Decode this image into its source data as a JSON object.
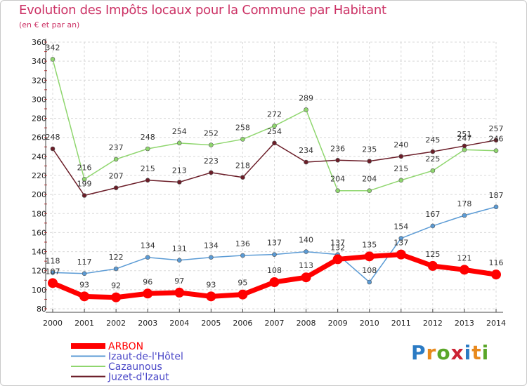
{
  "title": "Evolution des Impôts locaux pour la Commune par Habitant",
  "subtitle": "(en € et par an)",
  "logo": {
    "text": "Proxiti",
    "colors": [
      "#2b7bc4",
      "#e8891c",
      "#5aa628",
      "#cc2233",
      "#2b7bc4",
      "#e8891c",
      "#5aa628"
    ]
  },
  "chart_data": {
    "type": "line",
    "title": "Evolution des Impôts locaux pour la Commune par Habitant",
    "subtitle": "(en € et par an)",
    "x": [
      "2000",
      "2001",
      "2002",
      "2003",
      "2004",
      "2005",
      "2006",
      "2007",
      "2008",
      "2009",
      "2010",
      "2011",
      "2012",
      "2013",
      "2014"
    ],
    "ylim": [
      80,
      360
    ],
    "yticks": [
      80,
      100,
      120,
      140,
      160,
      180,
      200,
      220,
      240,
      260,
      280,
      300,
      320,
      340,
      360
    ],
    "grid": true,
    "legend": "bottom-left",
    "series": [
      {
        "name": "Izaut-de-l'Hôtel",
        "color": "#5b9bd5",
        "values": [
          118,
          117,
          122,
          134,
          131,
          134,
          136,
          137,
          140,
          137,
          108,
          154,
          167,
          178,
          187
        ]
      },
      {
        "name": "Cazaunous",
        "color": "#8fd66e",
        "values": [
          342,
          216,
          237,
          248,
          254,
          252,
          258,
          272,
          289,
          204,
          204,
          215,
          225,
          247,
          246
        ]
      },
      {
        "name": "Juzet-d'Izaut",
        "color": "#6b1d28",
        "values": [
          248,
          199,
          207,
          215,
          213,
          223,
          218,
          254,
          234,
          236,
          235,
          240,
          245,
          251,
          257
        ]
      },
      {
        "name": "ARBON",
        "color": "#ff0000",
        "values": [
          107,
          93,
          92,
          96,
          97,
          93,
          95,
          108,
          113,
          132,
          135,
          137,
          125,
          121,
          116
        ]
      }
    ]
  }
}
